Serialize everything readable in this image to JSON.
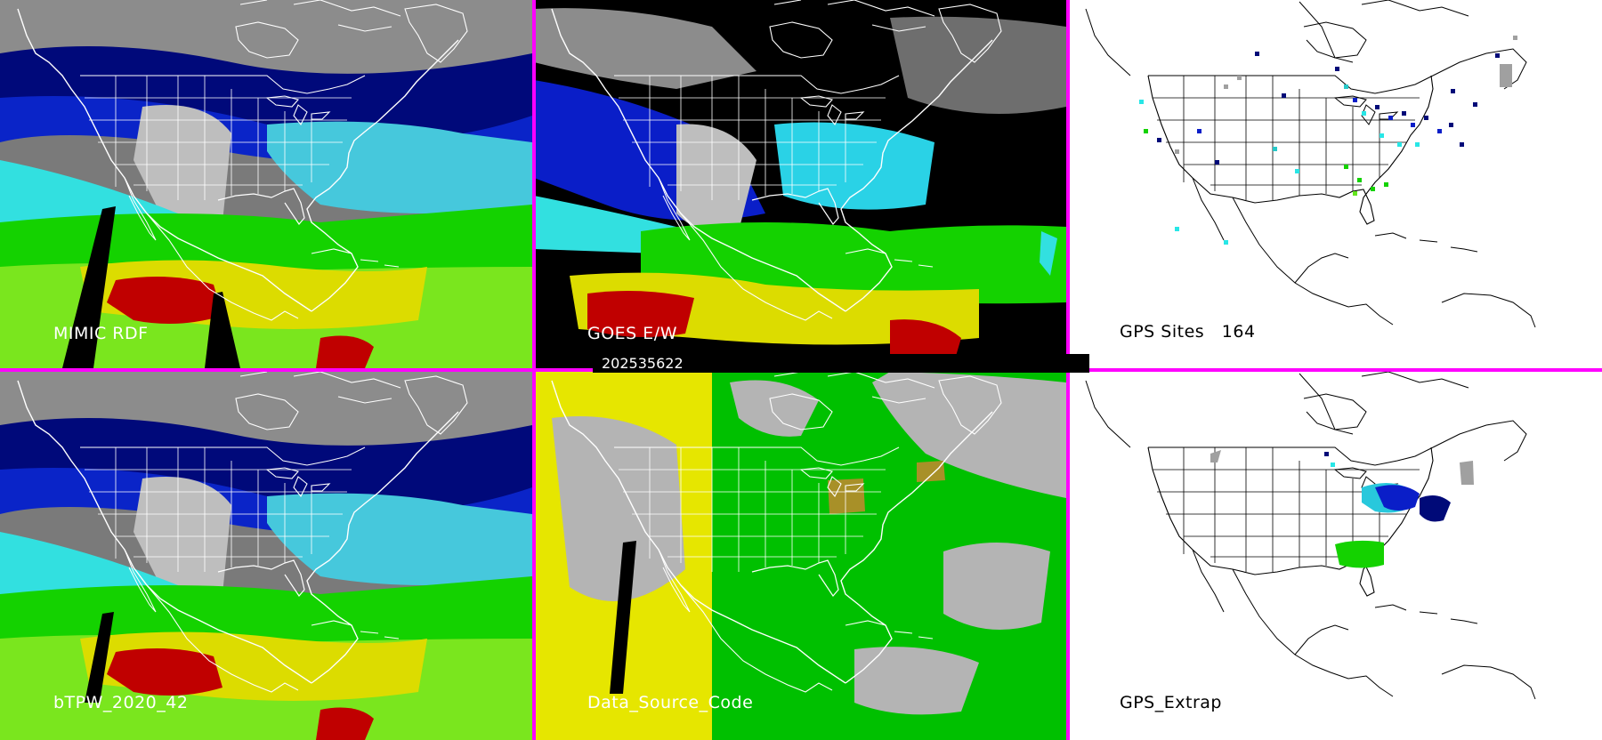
{
  "panels": {
    "mimic": {
      "label": "MIMIC RDF"
    },
    "goes": {
      "label": "GOES E/W"
    },
    "gps_sites": {
      "label": "GPS Sites",
      "count": "164"
    },
    "btpw": {
      "label": "bTPW_2020_42"
    },
    "source": {
      "label": "Data_Source_Code"
    },
    "gps_extrap": {
      "label": "GPS_Extrap"
    }
  },
  "timestamp": "202535622",
  "colors": {
    "divider": "#ff00ff",
    "tpw_scale": [
      "#5a5a5a",
      "#a0a0a0",
      "#dcdcdc",
      "#000a78",
      "#0a1ec8",
      "#3cc8dc",
      "#28e6e6",
      "#00d200",
      "#64e61e",
      "#d2dc00",
      "#b4a000",
      "#b40000"
    ],
    "source_goes": "#00c000",
    "source_polar": "#e6e600",
    "source_none": "#b4b4b4",
    "source_extrap": "#a89028"
  }
}
